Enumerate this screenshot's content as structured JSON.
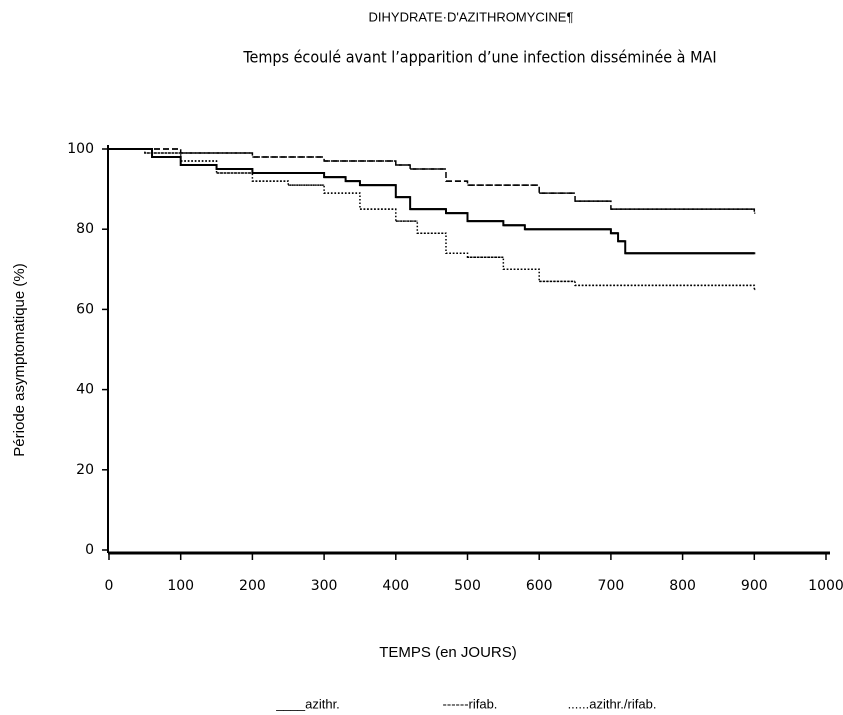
{
  "chart_data": {
    "type": "line",
    "step": true,
    "supertitle": "DIHYDRATE·D'AZITHROMYCINE¶",
    "title": "Temps écoulé avant l’apparition d’une infection disséminée à MAI",
    "x_label": "TEMPS (en JOURS)",
    "y_label": "Période asymptomatique (%)",
    "xlim": [
      0,
      1000
    ],
    "ylim": [
      0,
      100
    ],
    "xticks": [
      0,
      100,
      200,
      300,
      400,
      500,
      600,
      700,
      800,
      900,
      1000
    ],
    "yticks": [
      0,
      20,
      40,
      60,
      80,
      100
    ],
    "series": [
      {
        "name": "____azithr.",
        "color": "#000000",
        "dash": "solid",
        "x": [
          0,
          50,
          60,
          100,
          150,
          200,
          250,
          300,
          330,
          350,
          400,
          420,
          470,
          500,
          550,
          580,
          700,
          710,
          720,
          900
        ],
        "values": [
          100,
          100,
          98,
          96,
          95,
          94,
          94,
          93,
          92,
          91,
          88,
          85,
          84,
          82,
          81,
          80,
          79,
          77,
          74,
          74
        ]
      },
      {
        "name": "------rifab.",
        "color": "#000000",
        "dash": "dashed",
        "x": [
          0,
          100,
          200,
          300,
          400,
          420,
          470,
          500,
          600,
          650,
          700,
          900
        ],
        "values": [
          100,
          99,
          98,
          97,
          96,
          95,
          92,
          91,
          89,
          87,
          85,
          84
        ]
      },
      {
        "name": "......azithr./rifab.",
        "color": "#000000",
        "dash": "dotted",
        "x": [
          0,
          50,
          100,
          150,
          200,
          250,
          300,
          350,
          400,
          430,
          470,
          500,
          550,
          600,
          650,
          900
        ],
        "values": [
          100,
          99,
          97,
          94,
          92,
          91,
          89,
          85,
          82,
          79,
          74,
          73,
          70,
          67,
          66,
          65
        ]
      }
    ]
  }
}
